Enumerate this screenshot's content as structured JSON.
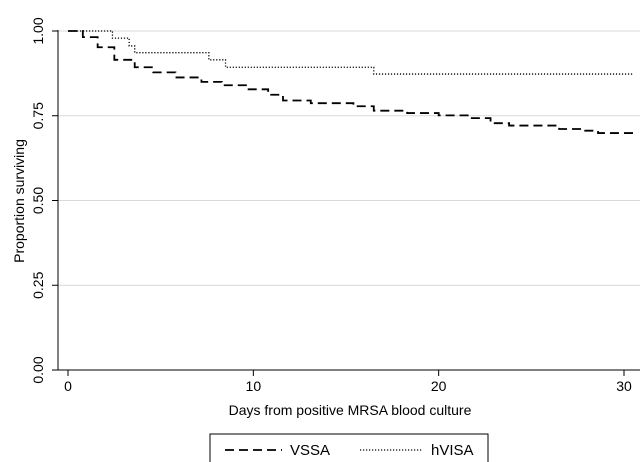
{
  "chart_data": {
    "type": "line",
    "subtype": "kaplan-meier step",
    "title": "",
    "xlabel": "Days from positive MRSA blood culture",
    "ylabel": "Proportion surviving",
    "xlim": [
      0,
      30.5
    ],
    "ylim": [
      0,
      1
    ],
    "xticks": [
      0,
      10,
      20,
      30
    ],
    "xtick_labels": [
      "0",
      "10",
      "20",
      "30"
    ],
    "yticks": [
      0,
      0.25,
      0.5,
      0.75,
      1
    ],
    "ytick_labels": [
      "0.00",
      "0.25",
      "0.50",
      "0.75",
      "1.00"
    ],
    "grid": "horizontal",
    "legend_position": "bottom-center",
    "series": [
      {
        "name": "VSSA",
        "style": "dashed",
        "color": "#000000",
        "points": [
          [
            0,
            1.0
          ],
          [
            0.8,
            0.982
          ],
          [
            1.6,
            0.952
          ],
          [
            2.5,
            0.915
          ],
          [
            3.6,
            0.893
          ],
          [
            4.6,
            0.878
          ],
          [
            5.8,
            0.863
          ],
          [
            7.2,
            0.85
          ],
          [
            8.3,
            0.84
          ],
          [
            9.6,
            0.828
          ],
          [
            10.8,
            0.812
          ],
          [
            11.6,
            0.795
          ],
          [
            13.1,
            0.787
          ],
          [
            15.4,
            0.778
          ],
          [
            16.5,
            0.765
          ],
          [
            18.3,
            0.758
          ],
          [
            20.0,
            0.751
          ],
          [
            21.7,
            0.743
          ],
          [
            22.8,
            0.728
          ],
          [
            23.8,
            0.721
          ],
          [
            26.5,
            0.711
          ],
          [
            27.7,
            0.706
          ],
          [
            28.6,
            0.699
          ],
          [
            30.5,
            0.699
          ]
        ]
      },
      {
        "name": "hVISA",
        "style": "dotted",
        "color": "#000000",
        "points": [
          [
            0,
            1.0
          ],
          [
            2.4,
            0.979
          ],
          [
            3.3,
            0.956
          ],
          [
            3.6,
            0.936
          ],
          [
            7.6,
            0.915
          ],
          [
            8.5,
            0.893
          ],
          [
            16.5,
            0.873
          ],
          [
            30.5,
            0.873
          ]
        ]
      }
    ]
  }
}
